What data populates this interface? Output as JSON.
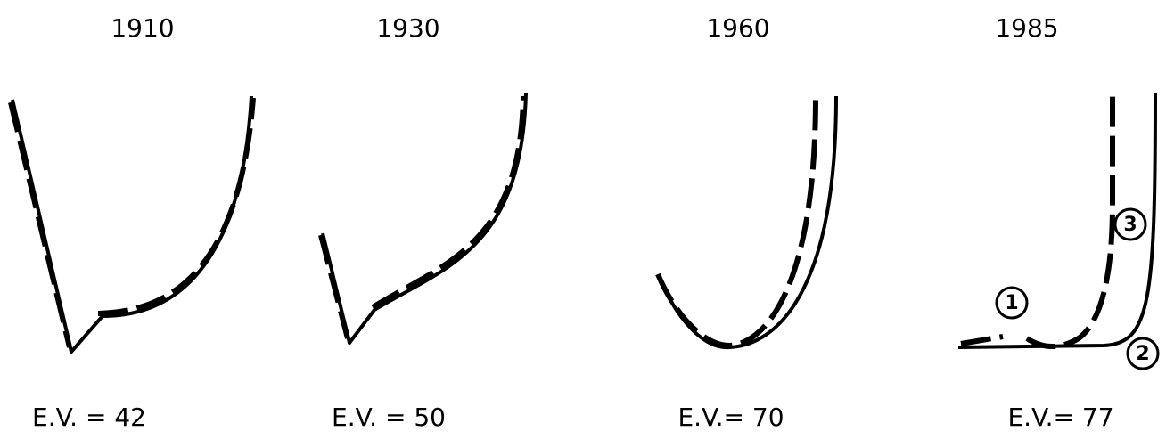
{
  "panels": [
    {
      "year": "1910",
      "label": "E.V. = 42"
    },
    {
      "year": "1930",
      "label": "E.V. = 50"
    },
    {
      "year": "1960",
      "label": "E.V.= 70"
    },
    {
      "year": "1985",
      "label": "E.V.= 77",
      "markers": [
        "1",
        "2",
        "3"
      ]
    }
  ]
}
